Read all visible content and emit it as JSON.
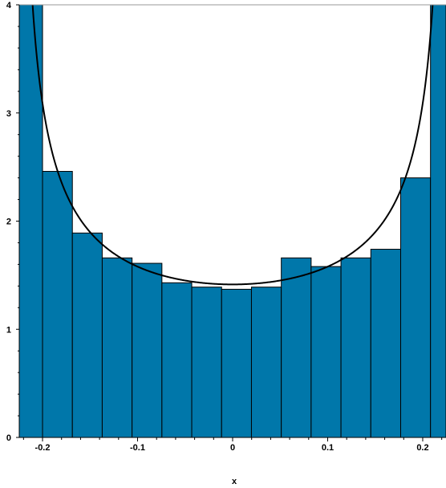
{
  "chart_data": {
    "type": "bar",
    "title": "",
    "xlabel": "x",
    "ylabel": "",
    "xlim": [
      -0.2245,
      0.2245
    ],
    "ylim": [
      0,
      4
    ],
    "xticks": [
      -0.2,
      -0.1,
      0,
      0.1,
      0.2
    ],
    "xtick_labels": [
      "-0.2",
      "-0.1",
      "0",
      "0.1",
      "0.2"
    ],
    "yticks": [
      0,
      1,
      2,
      3,
      4
    ],
    "ytick_labels": [
      "0",
      "1",
      "2",
      "3",
      "4"
    ],
    "grid": false,
    "bar_color": "#0077aa",
    "curve_color": "#000000",
    "histogram": {
      "bin_width": 0.0314,
      "bins": [
        {
          "x0": -0.2245,
          "x1": -0.2,
          "value": 4.0
        },
        {
          "x0": -0.2,
          "x1": -0.1686,
          "value": 2.46
        },
        {
          "x0": -0.1686,
          "x1": -0.1372,
          "value": 1.89
        },
        {
          "x0": -0.1372,
          "x1": -0.1058,
          "value": 1.66
        },
        {
          "x0": -0.1058,
          "x1": -0.0744,
          "value": 1.61
        },
        {
          "x0": -0.0744,
          "x1": -0.043,
          "value": 1.43
        },
        {
          "x0": -0.043,
          "x1": -0.0116,
          "value": 1.39
        },
        {
          "x0": -0.0116,
          "x1": 0.0198,
          "value": 1.37
        },
        {
          "x0": 0.0198,
          "x1": 0.0512,
          "value": 1.39
        },
        {
          "x0": 0.0512,
          "x1": 0.0826,
          "value": 1.66
        },
        {
          "x0": 0.0826,
          "x1": 0.114,
          "value": 1.58
        },
        {
          "x0": 0.114,
          "x1": 0.1454,
          "value": 1.66
        },
        {
          "x0": 0.1454,
          "x1": 0.1768,
          "value": 1.74
        },
        {
          "x0": 0.1768,
          "x1": 0.2082,
          "value": 2.4
        },
        {
          "x0": 0.2082,
          "x1": 0.2245,
          "value": 4.0
        }
      ]
    },
    "curve": {
      "description": "arcsine density",
      "amplitude": 0.225,
      "x_min": -0.2245,
      "x_max": 0.2245
    }
  }
}
